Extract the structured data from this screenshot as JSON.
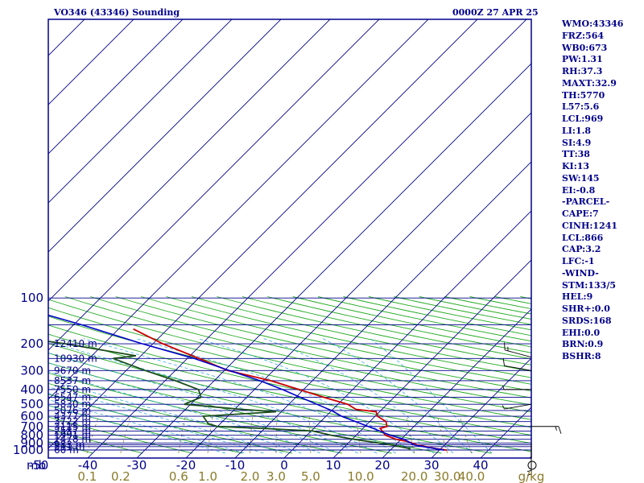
{
  "header": {
    "station": "VO346 (43346) Sounding",
    "time": "0000Z 27 APR 25"
  },
  "indices": [
    "WMO:43346",
    "FRZ:564",
    "WB0:673",
    "PW:1.31",
    "RH:37.3",
    "MAXT:32.9",
    "TH:5770",
    "L57:5.6",
    "LCL:969",
    "LI:1.8",
    "SI:4.9",
    "TT:38",
    "KI:13",
    "SW:145",
    "EI:-0.8",
    "-PARCEL-",
    "CAPE:7",
    "CINH:1241",
    "LCL:866",
    "CAP:3.2",
    "LFC:-1",
    "-WIND-",
    "STM:133/5",
    "HEL:9",
    "SHR+:0.0",
    "SRDS:168",
    "EHI:0.0",
    "BRN:0.9",
    "BSHR:8"
  ],
  "axes": {
    "p_unit_label": "mb",
    "p_labels": [
      "100",
      "200",
      "300",
      "400",
      "500",
      "600",
      "700",
      "800",
      "900",
      "1000"
    ],
    "t_labels": [
      "-50",
      "-40",
      "-30",
      "-20",
      "-10",
      "0",
      "10",
      "20",
      "30",
      "40"
    ],
    "mix_labels": [
      "0.1",
      "0.2",
      "0.6",
      "1.0",
      "2.0",
      "3.0",
      "5.0",
      "10.0",
      "20.0",
      "30.0",
      "40.0"
    ],
    "mix_unit_label": "g/kg"
  },
  "colors": {
    "frame": "#00008b",
    "isobar": "#00008b",
    "isotherm": "#00008b",
    "dry_adiabat": "#22aa22",
    "moist_adiabat": "#33aadd",
    "mixing_ratio": "#8b7b2a",
    "temperature": "#cc0000",
    "dewpoint": "#1a4d1a",
    "parcel": "#0000cc",
    "mix_label": "#8b7b2a"
  },
  "chart_data": {
    "type": "line",
    "title": "VO346 (43346) Sounding",
    "subtitle": "0000Z 27 APR 25",
    "xlabel": "",
    "ylabel": "mb",
    "x_unit": "C",
    "y_scale": "log",
    "ylim": [
      1000,
      100
    ],
    "xlim": [
      -50,
      50
    ],
    "height_levels": [
      {
        "p": 1002,
        "label": "60 m"
      },
      {
        "p": 950,
        "label": "511 m"
      },
      {
        "p": 925,
        "label": "983 m"
      },
      {
        "p": 850,
        "label": "1478 m"
      },
      {
        "p": 800,
        "label": "1991 m"
      },
      {
        "p": 750,
        "label": "2537 m"
      },
      {
        "p": 700,
        "label": "3115 m"
      },
      {
        "p": 650,
        "label": "3722 m"
      },
      {
        "p": 600,
        "label": "4377 m"
      },
      {
        "p": 550,
        "label": "5076 m"
      },
      {
        "p": 500,
        "label": "5830 m"
      },
      {
        "p": 450,
        "label": "6547 m"
      },
      {
        "p": 400,
        "label": "7550 m"
      },
      {
        "p": 350,
        "label": "8537 m"
      },
      {
        "p": 300,
        "label": "9670 m"
      },
      {
        "p": 250,
        "label": "10930 m"
      },
      {
        "p": 200,
        "label": "12410 m"
      }
    ],
    "series": [
      {
        "kind": "temperature",
        "points": [
          [
            1002,
            31.5
          ],
          [
            980,
            29.0
          ],
          [
            925,
            24.3
          ],
          [
            880,
            21.8
          ],
          [
            850,
            19.0
          ],
          [
            800,
            16.0
          ],
          [
            720,
            13.5
          ],
          [
            700,
            14.5
          ],
          [
            650,
            13.3
          ],
          [
            600,
            10.5
          ],
          [
            560,
            9.3
          ],
          [
            540,
            4.7
          ],
          [
            500,
            2.0
          ],
          [
            450,
            -4.3
          ],
          [
            400,
            -10.9
          ],
          [
            350,
            -18.5
          ],
          [
            300,
            -29.3
          ],
          [
            250,
            -37.6
          ],
          [
            200,
            -48.0
          ],
          [
            160,
            -57.0
          ]
        ]
      },
      {
        "kind": "dewpoint",
        "points": [
          [
            1002,
            23.8
          ],
          [
            980,
            23.7
          ],
          [
            925,
            19.0
          ],
          [
            850,
            10.4
          ],
          [
            800,
            5.0
          ],
          [
            750,
            0.3
          ],
          [
            720,
            -10.7
          ],
          [
            700,
            -20.0
          ],
          [
            670,
            -22.5
          ],
          [
            600,
            -25.0
          ],
          [
            560,
            -11.1
          ],
          [
            540,
            -18.6
          ],
          [
            500,
            -31.3
          ],
          [
            450,
            -29.3
          ],
          [
            400,
            -31.4
          ],
          [
            350,
            -37.9
          ],
          [
            300,
            -46.1
          ],
          [
            250,
            -55.1
          ],
          [
            240,
            -51.0
          ],
          [
            200,
            -67.9
          ],
          [
            170,
            -85.4
          ],
          [
            160,
            -89.7
          ],
          [
            150,
            -92.8
          ]
        ]
      },
      {
        "kind": "parcel",
        "points": [
          [
            1002,
            31.0
          ],
          [
            950,
            26.0
          ],
          [
            925,
            23.7
          ],
          [
            880,
            21.9
          ],
          [
            850,
            20.6
          ],
          [
            800,
            17.0
          ],
          [
            700,
            10.7
          ],
          [
            600,
            3.2
          ],
          [
            550,
            0.0
          ],
          [
            500,
            -4.3
          ],
          [
            450,
            -9.1
          ],
          [
            400,
            -14.3
          ],
          [
            350,
            -20.7
          ],
          [
            300,
            -29.0
          ],
          [
            250,
            -38.6
          ],
          [
            200,
            -52.2
          ],
          [
            150,
            -68.4
          ],
          [
            120,
            -81.9
          ],
          [
            103,
            -91.0
          ]
        ]
      }
    ],
    "wind_barbs": [
      {
        "p": 245,
        "dir": 285,
        "speed": 15
      },
      {
        "p": 300,
        "dir": 280,
        "speed": 10
      },
      {
        "p": 400,
        "dir": 270,
        "speed": 5
      },
      {
        "p": 500,
        "dir": 260,
        "speed": 5
      },
      {
        "p": 700,
        "dir": 90,
        "speed": 15
      },
      {
        "p": 900,
        "dir": 180,
        "speed": 5
      },
      {
        "p": 950,
        "dir": 180,
        "speed": 5
      }
    ]
  }
}
